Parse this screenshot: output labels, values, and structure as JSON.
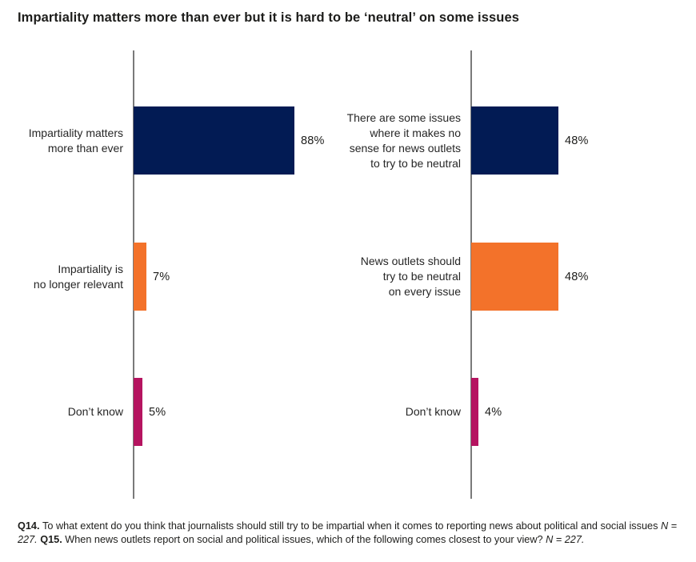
{
  "title": "Impartiality matters more than ever but it is hard to be ‘neutral’ on some issues",
  "colors": {
    "navy": "#021b54",
    "orange": "#f3722a",
    "magenta": "#b51460",
    "axis_gray": "#7a7a7a",
    "text_dark": "#1d1d1b"
  },
  "chart_data": [
    {
      "type": "bar",
      "orientation": "horizontal",
      "title": "",
      "xlabel": "",
      "ylabel": "",
      "xlim": [
        0,
        100
      ],
      "grid": false,
      "categories": [
        "Impartiality matters\nmore than ever",
        "Impartiality is\nno longer relevant",
        "Don’t know"
      ],
      "values": [
        88,
        7,
        5
      ],
      "value_labels": [
        "88%",
        "7%",
        "5%"
      ],
      "bar_colors": [
        "navy",
        "orange",
        "magenta"
      ]
    },
    {
      "type": "bar",
      "orientation": "horizontal",
      "title": "",
      "xlabel": "",
      "ylabel": "",
      "xlim": [
        0,
        100
      ],
      "grid": false,
      "categories": [
        "There are some issues\nwhere it makes no\nsense for news outlets\nto try to be neutral",
        "News outlets should\ntry to be neutral\non every issue",
        "Don’t know"
      ],
      "values": [
        48,
        48,
        4
      ],
      "value_labels": [
        "48%",
        "48%",
        "4%"
      ],
      "bar_colors": [
        "navy",
        "orange",
        "magenta"
      ]
    }
  ],
  "footer": {
    "segments": [
      {
        "text": "Q14. ",
        "style": "bold"
      },
      {
        "text": "To what extent do you think that journalists should still try to be impartial when it comes to reporting news about political and social issues ",
        "style": "normal"
      },
      {
        "text": "N = 227.",
        "style": "italic"
      },
      {
        "text": " ",
        "style": "normal"
      },
      {
        "text": "Q15. ",
        "style": "bold"
      },
      {
        "text": "When news outlets report on social and political issues, which of the following comes closest to your view? ",
        "style": "normal"
      },
      {
        "text": "N = 227.",
        "style": "italic"
      }
    ]
  }
}
